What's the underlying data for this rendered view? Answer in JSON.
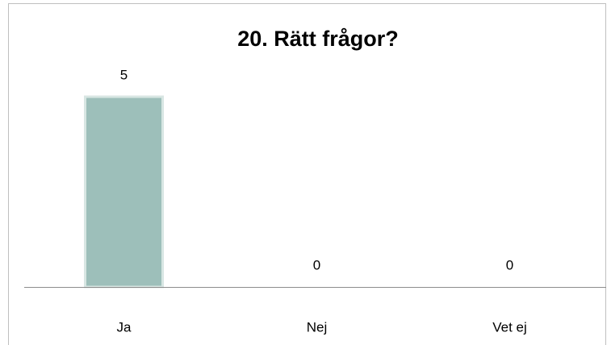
{
  "chart_data": {
    "type": "bar",
    "title": "20. Rätt frågor?",
    "categories": [
      "Ja",
      "Nej",
      "Vet ej"
    ],
    "values": [
      5,
      0,
      0
    ],
    "color": "#9dbfba",
    "ylim": [
      0,
      5
    ]
  }
}
